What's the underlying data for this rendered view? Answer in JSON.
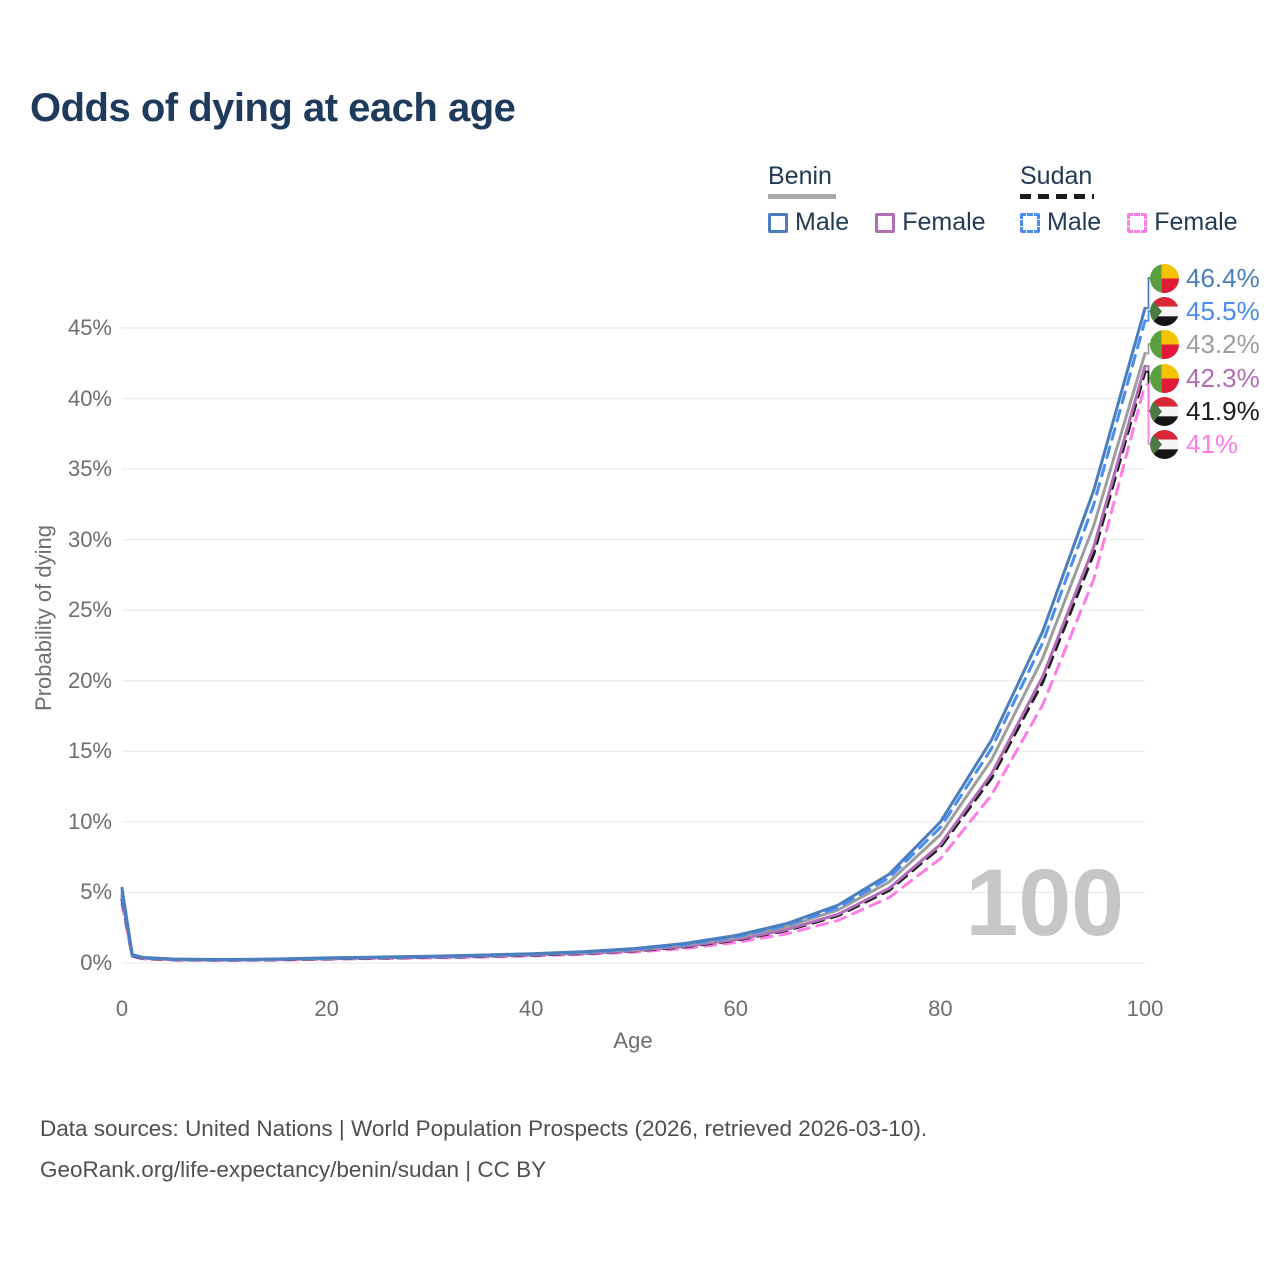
{
  "title": "Odds of dying at each age",
  "legend": {
    "benin": {
      "title": "Benin",
      "male": "Male",
      "female": "Female"
    },
    "sudan": {
      "title": "Sudan",
      "male": "Male",
      "female": "Female"
    }
  },
  "watermark": "100",
  "source": {
    "line1": "Data sources: United Nations | World Population Prospects (2026, retrieved 2026-03-10).",
    "line2": "GeoRank.org/life-expectancy/benin/sudan | CC BY"
  },
  "colors": {
    "title_text": "#1e3a5c",
    "legend_text": "#233a54",
    "axis_text": "#6e6e6e",
    "grid": "#ececec",
    "watermark": "#c6c6c6",
    "source_text": "#4f4f4f",
    "benin_underline": "#a8a8a8",
    "sudan_underline": "#1b1b1b",
    "benin_male": "#4a7ebc",
    "benin_female": "#b06cb5",
    "benin_combined": "#9e9e9e",
    "sudan_male": "#4a8cf5",
    "sudan_female": "#ff7ce5",
    "sudan_combined": "#1b1b1b"
  },
  "chart_data": {
    "type": "line",
    "title": "Odds of dying at each age",
    "xlabel": "Age",
    "ylabel": "Probability of dying",
    "xlim": [
      0,
      100
    ],
    "ylim": [
      0,
      47.5
    ],
    "grid": "horizontal only",
    "legend_position": "top-right",
    "x_ticks": [
      {
        "v": 0,
        "label": "0"
      },
      {
        "v": 20,
        "label": "20"
      },
      {
        "v": 40,
        "label": "40"
      },
      {
        "v": 60,
        "label": "60"
      },
      {
        "v": 80,
        "label": "80"
      },
      {
        "v": 100,
        "label": "100"
      }
    ],
    "y_ticks": [
      {
        "v": 0,
        "label": "0%"
      },
      {
        "v": 5,
        "label": "5%"
      },
      {
        "v": 10,
        "label": "10%"
      },
      {
        "v": 15,
        "label": "15%"
      },
      {
        "v": 20,
        "label": "20%"
      },
      {
        "v": 25,
        "label": "25%"
      },
      {
        "v": 30,
        "label": "30%"
      },
      {
        "v": 35,
        "label": "35%"
      },
      {
        "v": 40,
        "label": "40%"
      },
      {
        "v": 45,
        "label": "45%"
      }
    ],
    "label_rows_y": [
      278,
      311,
      344,
      378,
      411,
      444
    ],
    "ages": [
      0,
      1,
      2,
      5,
      10,
      15,
      20,
      25,
      30,
      35,
      40,
      45,
      50,
      55,
      60,
      65,
      70,
      75,
      80,
      85,
      90,
      95,
      100
    ],
    "series": [
      {
        "id": "sudan-female",
        "name": "Sudan Female",
        "country": "sudan",
        "color": "#ff7ce5",
        "dashed": true,
        "end_label": "41%",
        "end_value": 41.0,
        "label_row": 5,
        "values": [
          4.2,
          0.46,
          0.3,
          0.21,
          0.18,
          0.21,
          0.26,
          0.31,
          0.36,
          0.42,
          0.5,
          0.61,
          0.77,
          1.03,
          1.45,
          2.07,
          3.02,
          4.65,
          7.4,
          11.9,
          18.3,
          27.2,
          41.0
        ]
      },
      {
        "id": "sudan-combined",
        "name": "Sudan",
        "country": "sudan",
        "color": "#1b1b1b",
        "dashed": true,
        "end_label": "41.9%",
        "end_value": 41.9,
        "label_row": 4,
        "values": [
          4.5,
          0.5,
          0.33,
          0.23,
          0.2,
          0.23,
          0.29,
          0.35,
          0.4,
          0.46,
          0.55,
          0.67,
          0.85,
          1.14,
          1.61,
          2.3,
          3.35,
          5.15,
          8.2,
          13.1,
          19.9,
          29.0,
          41.9
        ]
      },
      {
        "id": "benin-female",
        "name": "Benin Female",
        "country": "benin",
        "color": "#b06cb5",
        "dashed": false,
        "end_label": "42.3%",
        "end_value": 42.3,
        "label_row": 3,
        "values": [
          4.7,
          0.54,
          0.36,
          0.25,
          0.21,
          0.25,
          0.31,
          0.37,
          0.42,
          0.49,
          0.58,
          0.7,
          0.88,
          1.18,
          1.66,
          2.37,
          3.45,
          5.3,
          8.4,
          13.4,
          20.3,
          29.5,
          42.3
        ]
      },
      {
        "id": "benin-combined",
        "name": "Benin",
        "country": "benin",
        "color": "#9e9e9e",
        "dashed": false,
        "end_label": "43.2%",
        "end_value": 43.2,
        "label_row": 2,
        "values": [
          5.0,
          0.57,
          0.38,
          0.26,
          0.23,
          0.26,
          0.34,
          0.4,
          0.45,
          0.53,
          0.62,
          0.75,
          0.95,
          1.28,
          1.8,
          2.58,
          3.76,
          5.75,
          9.1,
          14.4,
          21.6,
          31.0,
          43.2
        ]
      },
      {
        "id": "sudan-male",
        "name": "Sudan Male",
        "country": "sudan",
        "color": "#4a8cf5",
        "dashed": true,
        "end_label": "45.5%",
        "end_value": 45.5,
        "label_row": 1,
        "values": [
          4.8,
          0.54,
          0.36,
          0.25,
          0.22,
          0.26,
          0.33,
          0.39,
          0.45,
          0.52,
          0.62,
          0.76,
          0.97,
          1.31,
          1.86,
          2.68,
          3.92,
          6.05,
          9.6,
          15.2,
          22.7,
          32.5,
          45.5
        ]
      },
      {
        "id": "benin-male",
        "name": "Benin Male",
        "country": "benin",
        "color": "#4a7ebc",
        "dashed": false,
        "end_label": "46.4%",
        "end_value": 46.4,
        "label_row": 0,
        "values": [
          5.3,
          0.6,
          0.4,
          0.28,
          0.24,
          0.28,
          0.36,
          0.42,
          0.48,
          0.56,
          0.66,
          0.8,
          1.02,
          1.38,
          1.95,
          2.8,
          4.1,
          6.3,
          10.0,
          15.8,
          23.5,
          33.5,
          46.4
        ]
      }
    ]
  }
}
